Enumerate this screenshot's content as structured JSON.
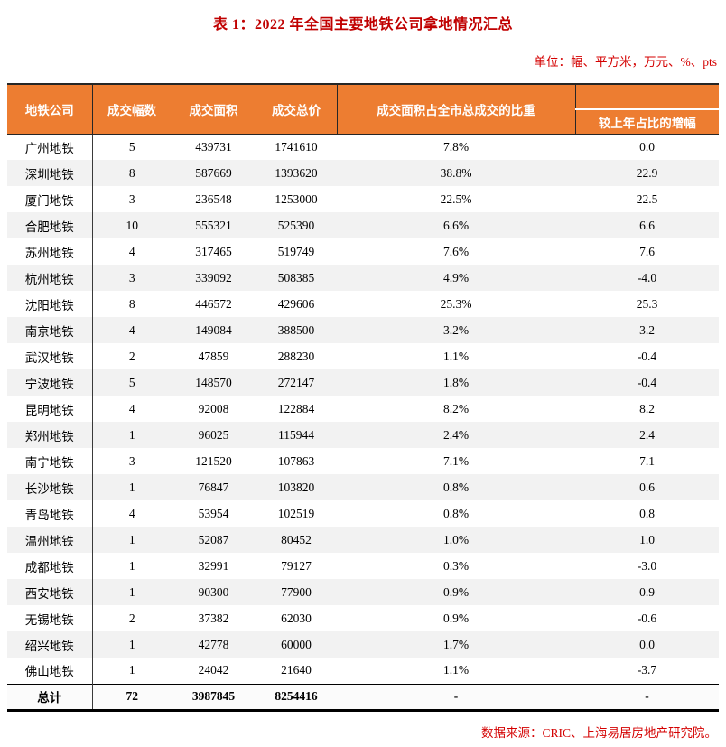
{
  "title": "表 1：2022 年全国主要地铁公司拿地情况汇总",
  "unit_note": "单位：幅、平方米，万元、%、pts",
  "source_note": "数据来源：CRIC、上海易居房地产研究院。",
  "colors": {
    "header_bg": "#ED7D31",
    "header_text": "#FFFFFF",
    "row_stripe": "#F2F2F2",
    "accent_text": "#C00000"
  },
  "table": {
    "headers": [
      "地铁公司",
      "成交幅数",
      "成交面积",
      "成交总价",
      "成交面积占全市总成交的比重",
      "较上年占比的增幅"
    ],
    "column_keys": [
      "company",
      "deal-count",
      "deal-area",
      "deal-total-price",
      "area-share",
      "share-change"
    ],
    "rows": [
      [
        "广州地铁",
        "5",
        "439731",
        "1741610",
        "7.8%",
        "0.0"
      ],
      [
        "深圳地铁",
        "8",
        "587669",
        "1393620",
        "38.8%",
        "22.9"
      ],
      [
        "厦门地铁",
        "3",
        "236548",
        "1253000",
        "22.5%",
        "22.5"
      ],
      [
        "合肥地铁",
        "10",
        "555321",
        "525390",
        "6.6%",
        "6.6"
      ],
      [
        "苏州地铁",
        "4",
        "317465",
        "519749",
        "7.6%",
        "7.6"
      ],
      [
        "杭州地铁",
        "3",
        "339092",
        "508385",
        "4.9%",
        "-4.0"
      ],
      [
        "沈阳地铁",
        "8",
        "446572",
        "429606",
        "25.3%",
        "25.3"
      ],
      [
        "南京地铁",
        "4",
        "149084",
        "388500",
        "3.2%",
        "3.2"
      ],
      [
        "武汉地铁",
        "2",
        "47859",
        "288230",
        "1.1%",
        "-0.4"
      ],
      [
        "宁波地铁",
        "5",
        "148570",
        "272147",
        "1.8%",
        "-0.4"
      ],
      [
        "昆明地铁",
        "4",
        "92008",
        "122884",
        "8.2%",
        "8.2"
      ],
      [
        "郑州地铁",
        "1",
        "96025",
        "115944",
        "2.4%",
        "2.4"
      ],
      [
        "南宁地铁",
        "3",
        "121520",
        "107863",
        "7.1%",
        "7.1"
      ],
      [
        "长沙地铁",
        "1",
        "76847",
        "103820",
        "0.8%",
        "0.6"
      ],
      [
        "青岛地铁",
        "4",
        "53954",
        "102519",
        "0.8%",
        "0.8"
      ],
      [
        "温州地铁",
        "1",
        "52087",
        "80452",
        "1.0%",
        "1.0"
      ],
      [
        "成都地铁",
        "1",
        "32991",
        "79127",
        "0.3%",
        "-3.0"
      ],
      [
        "西安地铁",
        "1",
        "90300",
        "77900",
        "0.9%",
        "0.9"
      ],
      [
        "无锡地铁",
        "2",
        "37382",
        "62030",
        "0.9%",
        "-0.6"
      ],
      [
        "绍兴地铁",
        "1",
        "42778",
        "60000",
        "1.7%",
        "0.0"
      ],
      [
        "佛山地铁",
        "1",
        "24042",
        "21640",
        "1.1%",
        "-3.7"
      ]
    ],
    "total_row": [
      "总计",
      "72",
      "3987845",
      "8254416",
      "-",
      "-"
    ]
  }
}
